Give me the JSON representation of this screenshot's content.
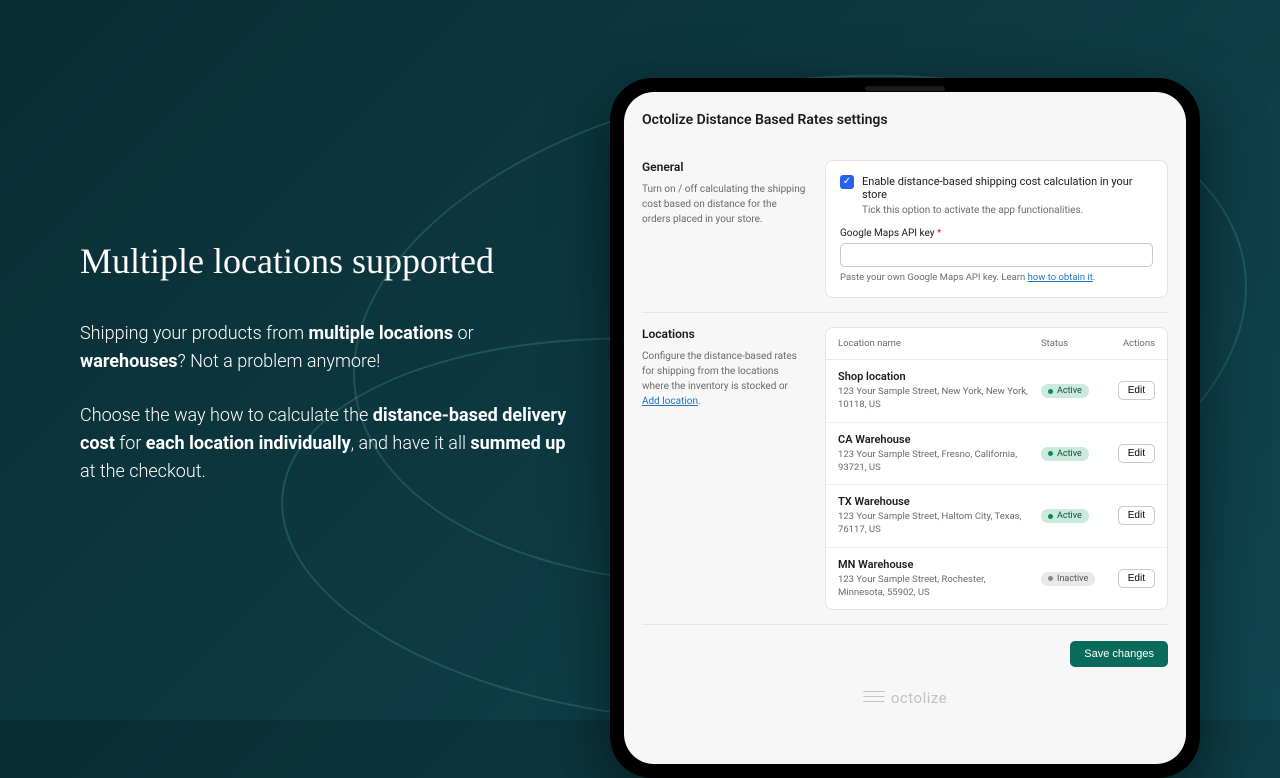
{
  "promo": {
    "headline": "Multiple locations supported",
    "para1_pre": "Shipping your products from ",
    "para1_b1": "multiple locations",
    "para1_mid": " or ",
    "para1_b2": "warehouses",
    "para1_post": "? Not a problem anymore!",
    "para2_pre": "Choose the way how to calculate the ",
    "para2_b1": "distance-based delivery cost",
    "para2_mid1": " for ",
    "para2_b2": "each location individually",
    "para2_mid2": ", and have it all ",
    "para2_b3": "summed up",
    "para2_post": " at the checkout."
  },
  "settings": {
    "page_title": "Octolize Distance Based Rates settings",
    "general": {
      "heading": "General",
      "desc": "Turn on / off calculating the shipping cost based on distance for the orders placed in your store.",
      "checkbox_label": "Enable distance-based shipping cost calculation in your store",
      "checkbox_help": "Tick this option to activate the app functionalities.",
      "api_label": "Google Maps API key",
      "api_required": "*",
      "api_value": "",
      "api_help_pre": "Paste your own Google Maps API key. Learn ",
      "api_help_link": "how to obtain it",
      "api_help_post": "."
    },
    "locations": {
      "heading": "Locations",
      "desc_pre": "Configure the distance-based rates for shipping from the locations where the inventory is stocked or ",
      "desc_link": "Add location",
      "desc_post": ".",
      "col_name": "Location name",
      "col_status": "Status",
      "col_actions": "Actions",
      "edit_label": "Edit",
      "status_active": "Active",
      "status_inactive": "Inactive",
      "rows": [
        {
          "name": "Shop location",
          "addr": "123 Your Sample Street, New York, New York, 10118, US",
          "status": "active"
        },
        {
          "name": "CA Warehouse",
          "addr": "123 Your Sample Street, Fresno, California, 93721, US",
          "status": "active"
        },
        {
          "name": "TX Warehouse",
          "addr": "123 Your Sample Street, Haltom City, Texas, 76117, US",
          "status": "active"
        },
        {
          "name": "MN Warehouse",
          "addr": "123 Your Sample Street, Rochester, Minnesota, 55902, US",
          "status": "inactive"
        }
      ]
    },
    "save_label": "Save changes",
    "brand": "octolize"
  },
  "colors": {
    "bg_gradient_start": "#0a2d35",
    "bg_gradient_end": "#0f4550",
    "accent_checkbox": "#2563eb",
    "save_button": "#0a6b5a",
    "badge_active_bg": "#cbeadd",
    "badge_inactive_bg": "#e8e8e8",
    "link": "#1f73b7"
  }
}
